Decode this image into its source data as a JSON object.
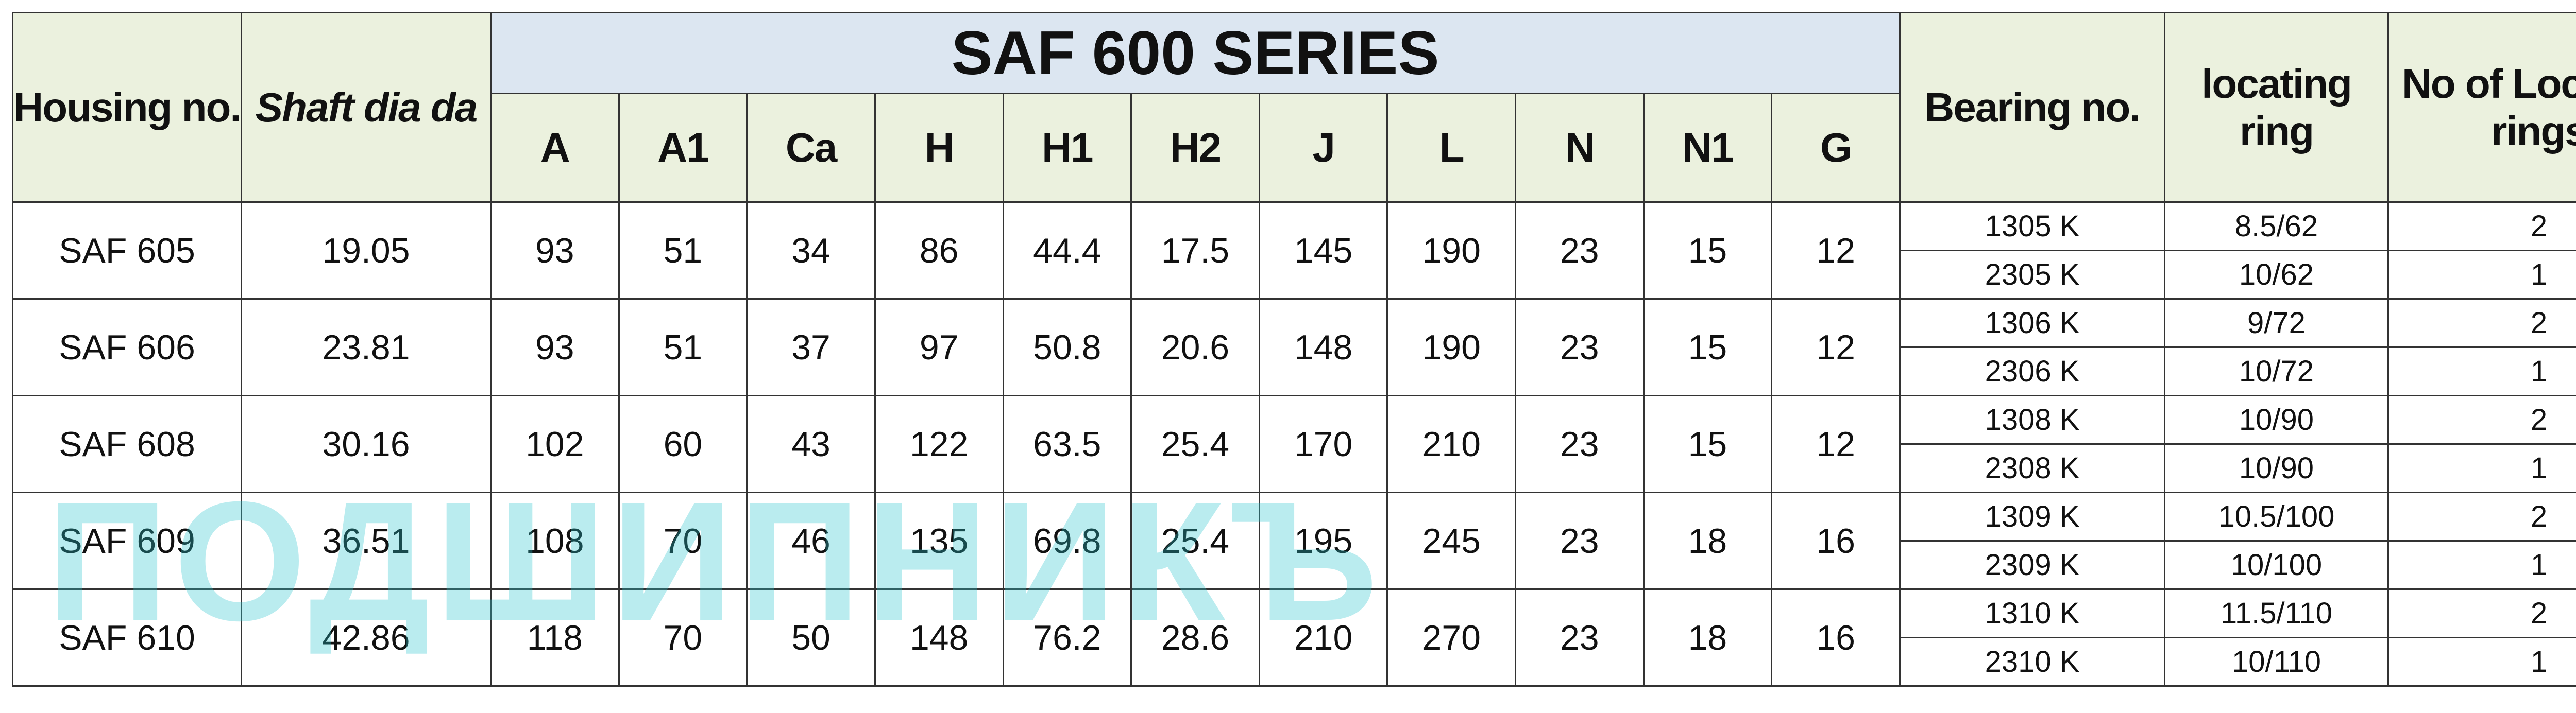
{
  "title": "SAF 600 SERIES",
  "watermark": "ПОДШИПНИКЪ",
  "headers": {
    "housing": "Housing no.",
    "shaft": "Shaft dia da",
    "dims": [
      "A",
      "A1",
      "Ca",
      "H",
      "H1",
      "H2",
      "J",
      "L",
      "N",
      "N1",
      "G"
    ],
    "bearing": "Bearing no.",
    "ring": "locating ring",
    "count": "No of Locating rings"
  },
  "rows": [
    {
      "housing": "SAF 605",
      "shaft": 19.05,
      "dims": [
        93,
        51,
        34,
        86,
        44.4,
        17.5,
        145,
        190,
        23,
        15,
        12
      ],
      "bearings": [
        {
          "no": "1305 K",
          "ring": "8.5/62",
          "count": 2
        },
        {
          "no": "2305 K",
          "ring": "10/62",
          "count": 1
        }
      ]
    },
    {
      "housing": "SAF 606",
      "shaft": 23.81,
      "dims": [
        93,
        51,
        37,
        97,
        50.8,
        20.6,
        148,
        190,
        23,
        15,
        12
      ],
      "bearings": [
        {
          "no": "1306 K",
          "ring": "9/72",
          "count": 2
        },
        {
          "no": "2306 K",
          "ring": "10/72",
          "count": 1
        }
      ]
    },
    {
      "housing": "SAF 608",
      "shaft": 30.16,
      "dims": [
        102,
        60,
        43,
        122,
        63.5,
        25.4,
        170,
        210,
        23,
        15,
        12
      ],
      "bearings": [
        {
          "no": "1308 K",
          "ring": "10/90",
          "count": 2
        },
        {
          "no": "2308 K",
          "ring": "10/90",
          "count": 1
        }
      ]
    },
    {
      "housing": "SAF 609",
      "shaft": 36.51,
      "dims": [
        108,
        70,
        46,
        135,
        69.8,
        25.4,
        195,
        245,
        23,
        18,
        16
      ],
      "bearings": [
        {
          "no": "1309 K",
          "ring": "10.5/100",
          "count": 2
        },
        {
          "no": "2309 K",
          "ring": "10/100",
          "count": 1
        }
      ]
    },
    {
      "housing": "SAF 610",
      "shaft": 42.86,
      "dims": [
        118,
        70,
        50,
        148,
        76.2,
        28.6,
        210,
        270,
        23,
        18,
        16
      ],
      "bearings": [
        {
          "no": "1310 K",
          "ring": "11.5/110",
          "count": 2
        },
        {
          "no": "2310 K",
          "ring": "10/110",
          "count": 1
        }
      ]
    }
  ]
}
